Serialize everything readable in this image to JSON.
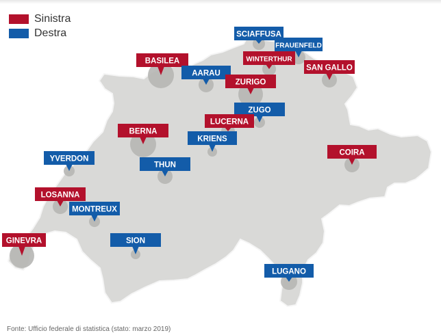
{
  "legend": [
    {
      "label": "Sinistra",
      "color": "#b3112c",
      "party": "left"
    },
    {
      "label": "Destra",
      "color": "#135ca9",
      "party": "right"
    }
  ],
  "colors": {
    "map_fill": "#d9d9d7",
    "map_stroke": "#f5f5f5",
    "bubble": "#b6b6b4"
  },
  "cities": [
    {
      "name": "SCIAFFUSA",
      "party": "right"
    },
    {
      "name": "FRAUENFELD",
      "party": "right"
    },
    {
      "name": "BASILEA",
      "party": "left"
    },
    {
      "name": "WINTERTHUR",
      "party": "left"
    },
    {
      "name": "SAN GALLO",
      "party": "left"
    },
    {
      "name": "AARAU",
      "party": "right"
    },
    {
      "name": "ZURIGO",
      "party": "left"
    },
    {
      "name": "ZUGO",
      "party": "right"
    },
    {
      "name": "LUCERNA",
      "party": "left"
    },
    {
      "name": "BERNA",
      "party": "left"
    },
    {
      "name": "KRIENS",
      "party": "right"
    },
    {
      "name": "COIRA",
      "party": "left"
    },
    {
      "name": "YVERDON",
      "party": "right"
    },
    {
      "name": "THUN",
      "party": "right"
    },
    {
      "name": "LOSANNA",
      "party": "left"
    },
    {
      "name": "MONTREUX",
      "party": "right"
    },
    {
      "name": "SION",
      "party": "right"
    },
    {
      "name": "GINEVRA",
      "party": "left"
    },
    {
      "name": "LUGANO",
      "party": "right"
    }
  ],
  "source": "Fonte: Ufficio federale di statistica (stato: marzo 2019)"
}
